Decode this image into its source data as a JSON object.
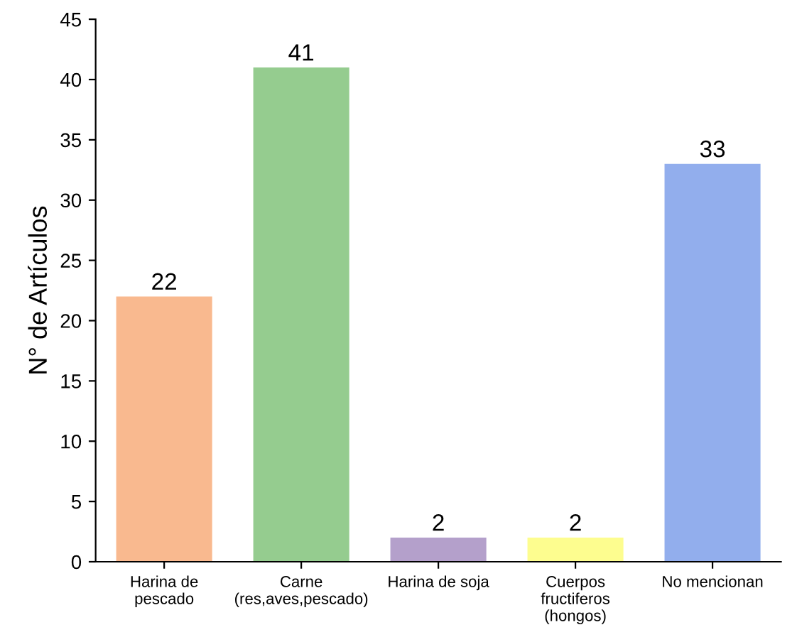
{
  "chart_data": {
    "type": "bar",
    "ylabel": "N° de Artículos",
    "categories": [
      "Harina de\npescado",
      "Carne\n(res,aves,pescado)",
      "Harina de soja",
      "Cuerpos\nfructiferos\n(hongos)",
      "No mencionan"
    ],
    "values": [
      22,
      41,
      2,
      2,
      33
    ],
    "colors": [
      "#f9b98f",
      "#95cc8f",
      "#b4a0cb",
      "#fdfd8f",
      "#92aeed"
    ],
    "ylim": [
      0,
      45
    ],
    "yticks": [
      0,
      5,
      10,
      15,
      20,
      25,
      30,
      35,
      40,
      45
    ],
    "data_labels": true,
    "grid": false
  }
}
